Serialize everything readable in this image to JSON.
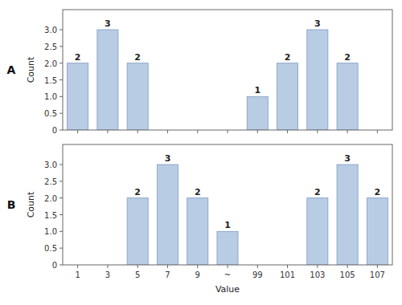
{
  "chart_data": [
    {
      "type": "bar",
      "title": "A",
      "categories": [
        "1",
        "3",
        "5",
        "7",
        "9",
        "~",
        "99",
        "101",
        "103",
        "105",
        "107"
      ],
      "values": [
        2,
        3,
        2,
        null,
        null,
        null,
        1,
        2,
        3,
        2,
        null
      ],
      "color": "#b8cce4",
      "ylabel": "Count",
      "ylim": [
        0,
        3.6
      ],
      "yticks": [
        0,
        0.5,
        {
          "value": 1.0,
          "label": "1.0"
        },
        1.5,
        {
          "value": 2.0,
          "label": "2.0"
        },
        2.5,
        {
          "value": 3.0,
          "label": "3.0"
        }
      ],
      "data_labels": true,
      "tick_labels": "y",
      "grid": false
    },
    {
      "type": "bar",
      "title": "B",
      "categories": [
        "1",
        "3",
        "5",
        "7",
        "9",
        "~",
        "99",
        "101",
        "103",
        "105",
        "107"
      ],
      "values": [
        null,
        null,
        2,
        3,
        2,
        1,
        null,
        null,
        2,
        3,
        2
      ],
      "color": "#b8cce4",
      "xlabel": "Value",
      "ylabel": "Count",
      "ylim": [
        0,
        3.6
      ],
      "yticks": [
        0,
        0.5,
        {
          "value": 1.0,
          "label": "1.0"
        },
        1.5,
        {
          "value": 2.0,
          "label": "2.0"
        },
        2.5,
        {
          "value": 3.0,
          "label": "3.0"
        }
      ],
      "data_labels": true,
      "grid": false
    }
  ]
}
